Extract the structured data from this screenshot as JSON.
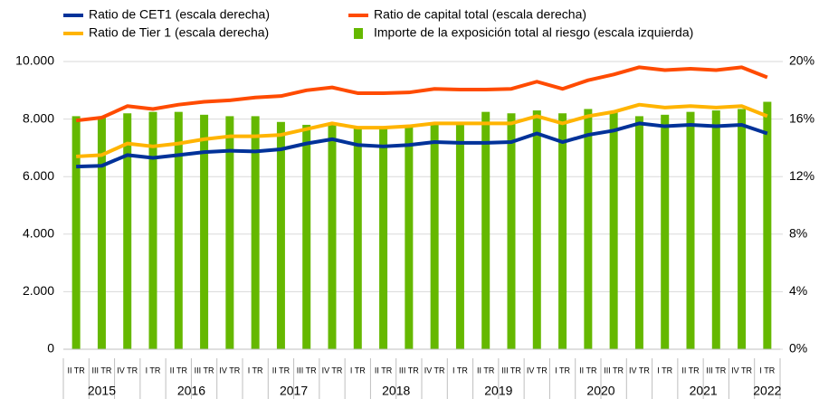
{
  "chart_data": {
    "type": "combo",
    "categories": [
      "II TR",
      "III TR",
      "IV TR",
      "I TR",
      "II TR",
      "III TR",
      "IV TR",
      "I TR",
      "II TR",
      "III TR",
      "IV TR",
      "I TR",
      "II TR",
      "III TR",
      "IV TR",
      "I TR",
      "II TR",
      "III TR",
      "IV TR",
      "I TR",
      "II TR",
      "III TR",
      "IV TR",
      "I TR",
      "II TR",
      "III TR",
      "IV TR",
      "I TR"
    ],
    "years": [
      "2015",
      "2016",
      "2017",
      "2018",
      "2019",
      "2020",
      "2021",
      "2022"
    ],
    "series": [
      {
        "name": "Ratio de CET1 (escala derecha)",
        "type": "line",
        "axis": "y2",
        "color": "#003299",
        "values": [
          12.7,
          12.75,
          13.5,
          13.3,
          13.5,
          13.7,
          13.8,
          13.75,
          13.9,
          14.3,
          14.6,
          14.2,
          14.1,
          14.2,
          14.4,
          14.35,
          14.35,
          14.4,
          15.0,
          14.4,
          14.9,
          15.2,
          15.7,
          15.5,
          15.6,
          15.5,
          15.6,
          15.0
        ]
      },
      {
        "name": "Ratio de capital total (escala derecha)",
        "type": "line",
        "axis": "y2",
        "color": "#ff4b00",
        "values": [
          15.9,
          16.1,
          16.9,
          16.7,
          17.0,
          17.2,
          17.3,
          17.5,
          17.6,
          18.0,
          18.2,
          17.8,
          17.8,
          17.85,
          18.1,
          18.05,
          18.05,
          18.1,
          18.6,
          18.1,
          18.7,
          19.1,
          19.6,
          19.4,
          19.5,
          19.4,
          19.6,
          18.9
        ]
      },
      {
        "name": "Ratio de Tier 1 (escala derecha)",
        "type": "line",
        "axis": "y2",
        "color": "#ffb400",
        "values": [
          13.4,
          13.5,
          14.3,
          14.1,
          14.3,
          14.6,
          14.8,
          14.8,
          14.9,
          15.3,
          15.7,
          15.4,
          15.4,
          15.5,
          15.7,
          15.7,
          15.7,
          15.7,
          16.2,
          15.7,
          16.2,
          16.5,
          17.0,
          16.8,
          16.9,
          16.8,
          16.9,
          16.2
        ]
      },
      {
        "name": "Importe de la exposición total al riesgo (escala izquierda)",
        "type": "bar",
        "color": "#65b800",
        "values": [
          8100,
          8050,
          8200,
          8250,
          8250,
          8150,
          8100,
          8100,
          7900,
          7800,
          7800,
          7700,
          7750,
          7750,
          7850,
          7900,
          8250,
          8200,
          8300,
          8200,
          8350,
          8250,
          8100,
          8150,
          8250,
          8300,
          8350,
          8600
        ]
      }
    ],
    "ylim": [
      0,
      10000
    ],
    "yticks": [
      {
        "value": 0,
        "label": "0"
      },
      {
        "value": 2000,
        "label": "2.000"
      },
      {
        "value": 4000,
        "label": "4.000"
      },
      {
        "value": 6000,
        "label": "6.000"
      },
      {
        "value": 8000,
        "label": "8.000"
      },
      {
        "value": 10000,
        "label": "10.000"
      }
    ],
    "y2lim": [
      0,
      20
    ],
    "y2ticks": [
      {
        "value": 0,
        "label": "0%"
      },
      {
        "value": 4,
        "label": "4%"
      },
      {
        "value": 8,
        "label": "8%"
      },
      {
        "value": 12,
        "label": "12%"
      },
      {
        "value": 16,
        "label": "16%"
      },
      {
        "value": 20,
        "label": "20%"
      }
    ],
    "grid": true
  }
}
